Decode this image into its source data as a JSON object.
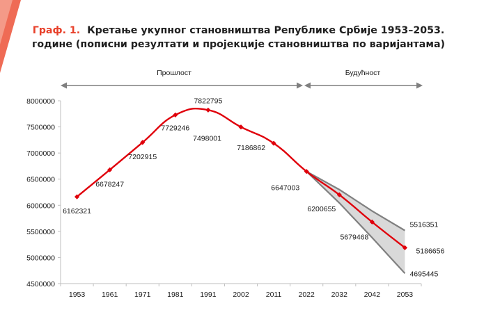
{
  "title": {
    "prefix": "Граф. 1.",
    "line1": "Кретање укупног становништва Републике Србије 1953–2053.",
    "line2": "године (пописни резултати и пројекције становништва по варијантама)"
  },
  "periods": {
    "past": "Прошлост",
    "future": "Будућност"
  },
  "colors": {
    "accent": "#e8402a",
    "line": "#e0000b",
    "band_fill": "#d9d9d9",
    "band_edge": "#808080",
    "axis": "#bfbfbf",
    "arrow": "#7f7f7f"
  },
  "chart_data": {
    "type": "line",
    "categories": [
      "1953",
      "1961",
      "1971",
      "1981",
      "1991",
      "2002",
      "2011",
      "2022",
      "2032",
      "2042",
      "2053"
    ],
    "ylim": [
      4500000,
      8000000
    ],
    "yticks": [
      "8000000",
      "7500000",
      "7000000",
      "6500000",
      "6000000",
      "5500000",
      "5000000",
      "4500000"
    ],
    "series": [
      {
        "values": [
          6162321,
          6678247,
          7202915,
          7729246,
          7822795,
          7498001,
          7186862,
          6647003,
          6200655,
          5679468,
          5186656
        ]
      }
    ],
    "band": {
      "upper": [
        6647003,
        6300000,
        5890000,
        5516351
      ],
      "lower": [
        6647003,
        6045000,
        5380000,
        4695445
      ]
    },
    "point_labels": [
      "6162321",
      "6678247",
      "7202915",
      "7729246",
      "7822795",
      "7498001",
      "7186862",
      "6647003",
      "6200655",
      "5679468",
      "5186656"
    ],
    "band_labels": {
      "upper": "5516351",
      "lower": "4695445"
    },
    "grid": false
  }
}
